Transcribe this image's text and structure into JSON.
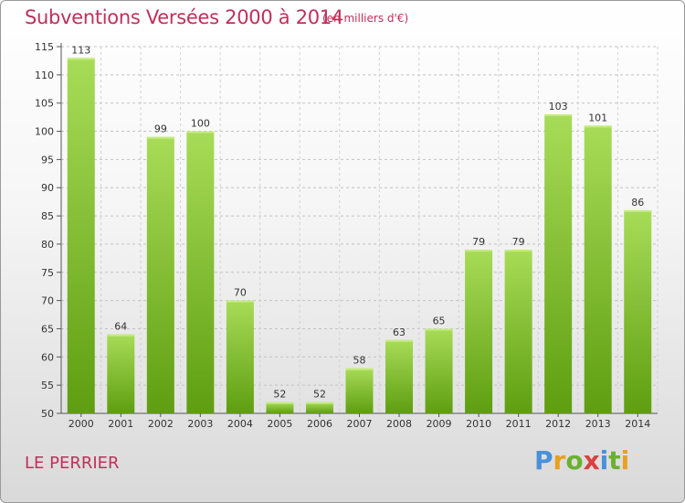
{
  "title": "Subventions Versées 2000 à 2014",
  "subtitle": "(en milliers d'€)",
  "commune": "LE PERRIER",
  "logo": {
    "letters": [
      "P",
      "r",
      "o",
      "x",
      "i",
      "t",
      "i"
    ],
    "colors": [
      "#4a90d9",
      "#e8a020",
      "#6cb030",
      "#d94040",
      "#4a90d9",
      "#6cb030",
      "#e8a020"
    ]
  },
  "colors": {
    "title": "#c0305a",
    "bar_light": "#9fd450",
    "bar_dark": "#5e9e10",
    "grid": "#bbbbbb"
  },
  "chart_data": {
    "type": "bar",
    "title": "Subventions Versées 2000 à 2014",
    "xlabel": "",
    "ylabel": "",
    "categories": [
      "2000",
      "2001",
      "2002",
      "2003",
      "2004",
      "2005",
      "2006",
      "2007",
      "2008",
      "2009",
      "2010",
      "2011",
      "2012",
      "2013",
      "2014"
    ],
    "values": [
      113,
      64,
      99,
      100,
      70,
      52,
      52,
      58,
      63,
      65,
      79,
      79,
      103,
      101,
      86
    ],
    "ylim": [
      50,
      115
    ],
    "yticks": [
      50,
      55,
      60,
      65,
      70,
      75,
      80,
      85,
      90,
      95,
      100,
      105,
      110,
      115
    ],
    "grid": true,
    "legend": "none"
  }
}
